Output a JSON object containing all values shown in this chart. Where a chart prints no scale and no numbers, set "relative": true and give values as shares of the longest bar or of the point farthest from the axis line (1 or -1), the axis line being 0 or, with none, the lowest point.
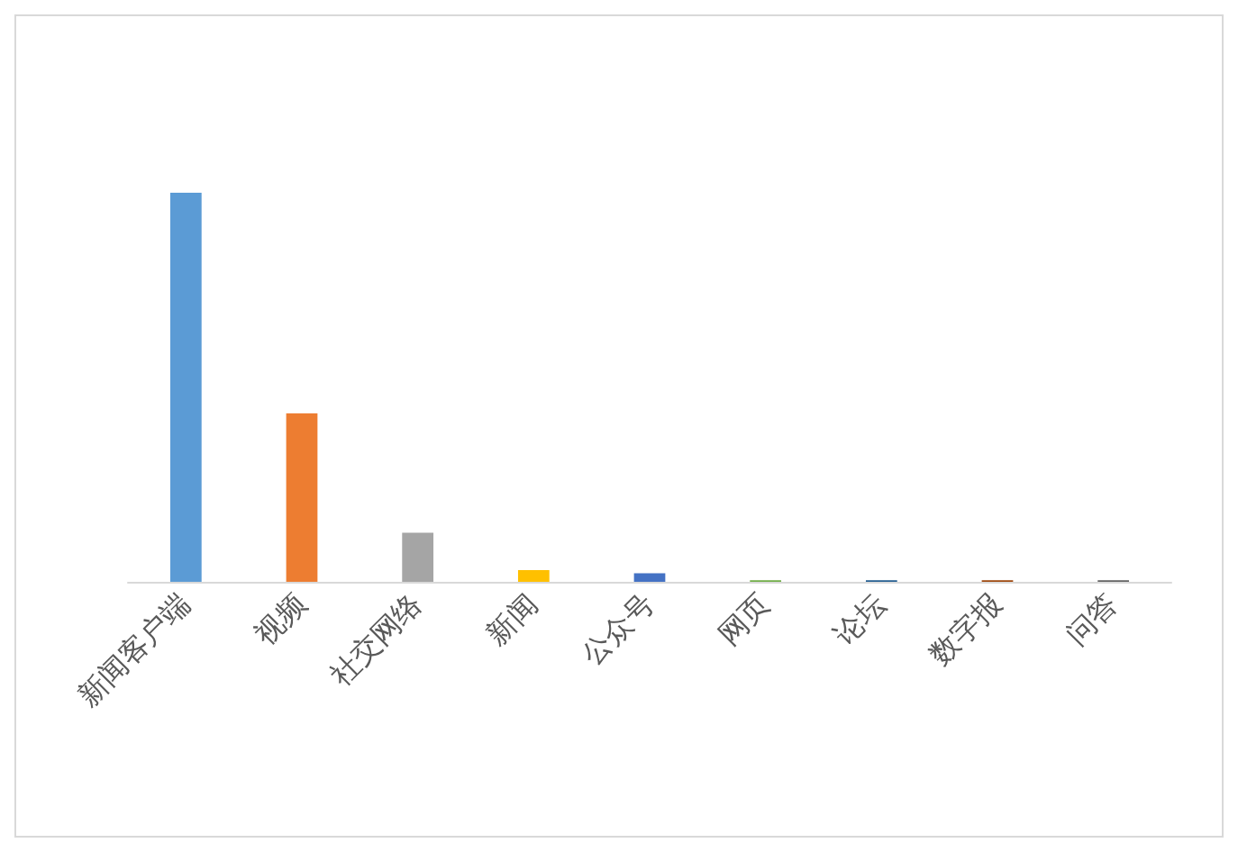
{
  "chart_data": {
    "type": "bar",
    "relative": true,
    "categories": [
      "新闻客户端",
      "视频",
      "社交网络",
      "新闻",
      "公众号",
      "网页",
      "论坛",
      "数字报",
      "问答"
    ],
    "values": [
      1,
      0.433,
      0.126,
      0.03,
      0.022,
      0.004,
      0.004,
      0.004,
      0.004
    ],
    "colors": [
      "#5b9bd5",
      "#ed7d31",
      "#a5a5a5",
      "#ffc000",
      "#4472c4",
      "#70ad47",
      "#255e91",
      "#9e480e",
      "#636363"
    ]
  }
}
